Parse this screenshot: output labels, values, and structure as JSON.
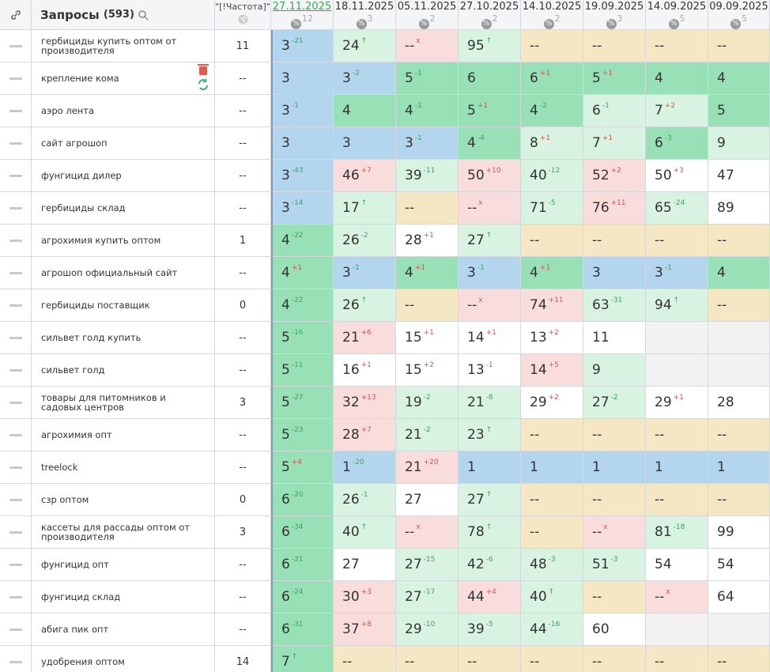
{
  "header": {
    "query_title": "Запросы",
    "query_count": "(593)",
    "frequency_title": "\"[!Частота]\"",
    "dates": [
      {
        "date": "27.11.2025",
        "count": 12
      },
      {
        "date": "18.11.2025",
        "count": 3
      },
      {
        "date": "05.11.2025",
        "count": 2
      },
      {
        "date": "27.10.2025",
        "count": 2
      },
      {
        "date": "14.10.2025",
        "count": 2
      },
      {
        "date": "19.09.2025",
        "count": 3
      },
      {
        "date": "14.09.2025",
        "count": 5
      },
      {
        "date": "09.09.2025",
        "count": 5
      }
    ]
  },
  "palette": {
    "blue": "#b3d5ee",
    "green": "#98e0b5",
    "mint": "#d8f3e2",
    "white": "#ffffff",
    "pink": "#f9dcdc",
    "beige": "#f5e7c3",
    "gray": "#f2f2f2",
    "improve": "#3aa55d",
    "worsen": "#d9534f"
  },
  "table": {
    "rows": [
      {
        "query": "гербициды купить оптом от производителя",
        "frequency": 11,
        "cells": [
          [
            3,
            "-21",
            "blue"
          ],
          [
            24,
            "↑",
            "mint"
          ],
          [
            "--",
            "x",
            "pink"
          ],
          [
            95,
            "↑",
            "mint"
          ],
          [
            "--",
            null,
            "beige"
          ],
          [
            "--",
            null,
            "beige"
          ],
          [
            "--",
            null,
            "beige"
          ],
          [
            "--",
            null,
            "beige"
          ]
        ]
      },
      {
        "query": "крепление кома",
        "frequency": "--",
        "cells": [
          [
            3,
            null,
            "blue"
          ],
          [
            3,
            "-2",
            "blue"
          ],
          [
            5,
            "-1",
            "green"
          ],
          [
            6,
            null,
            "green"
          ],
          [
            6,
            "+1",
            "green"
          ],
          [
            5,
            "+1",
            "green"
          ],
          [
            4,
            null,
            "green"
          ],
          [
            4,
            null,
            "green"
          ]
        ]
      },
      {
        "query": "аэро лента",
        "frequency": "--",
        "cells": [
          [
            3,
            "-1",
            "blue"
          ],
          [
            4,
            null,
            "green"
          ],
          [
            4,
            "-1",
            "green"
          ],
          [
            5,
            "+1",
            "green"
          ],
          [
            4,
            "-2",
            "green"
          ],
          [
            6,
            "-1",
            "mint"
          ],
          [
            7,
            "+2",
            "mint"
          ],
          [
            5,
            null,
            "green"
          ]
        ]
      },
      {
        "query": "сайт агрошоп",
        "frequency": "--",
        "cells": [
          [
            3,
            null,
            "blue"
          ],
          [
            3,
            null,
            "blue"
          ],
          [
            3,
            "-1",
            "blue"
          ],
          [
            4,
            "-4",
            "green"
          ],
          [
            8,
            "+1",
            "mint"
          ],
          [
            7,
            "+1",
            "mint"
          ],
          [
            6,
            "-3",
            "green"
          ],
          [
            9,
            null,
            "mint"
          ]
        ]
      },
      {
        "query": "фунгицид дилер",
        "frequency": "--",
        "cells": [
          [
            3,
            "-43",
            "blue"
          ],
          [
            46,
            "+7",
            "pink"
          ],
          [
            39,
            "-11",
            "mint"
          ],
          [
            50,
            "+10",
            "pink"
          ],
          [
            40,
            "-12",
            "mint"
          ],
          [
            52,
            "+2",
            "pink"
          ],
          [
            50,
            "+3",
            "white"
          ],
          [
            47,
            null,
            "white"
          ]
        ]
      },
      {
        "query": "гербициды склад",
        "frequency": "--",
        "cells": [
          [
            3,
            "-14",
            "blue"
          ],
          [
            17,
            "↑",
            "mint"
          ],
          [
            "--",
            null,
            "beige"
          ],
          [
            "--",
            "x",
            "pink"
          ],
          [
            71,
            "-5",
            "mint"
          ],
          [
            76,
            "+11",
            "pink"
          ],
          [
            65,
            "-24",
            "mint"
          ],
          [
            89,
            null,
            "white"
          ]
        ]
      },
      {
        "query": "агрохимия купить оптом",
        "frequency": 1,
        "cells": [
          [
            4,
            "-22",
            "green"
          ],
          [
            26,
            "-2",
            "mint"
          ],
          [
            28,
            "+1",
            "white"
          ],
          [
            27,
            "↑",
            "mint"
          ],
          [
            "--",
            null,
            "beige"
          ],
          [
            "--",
            null,
            "beige"
          ],
          [
            "--",
            null,
            "beige"
          ],
          [
            "--",
            null,
            "beige"
          ]
        ]
      },
      {
        "query": "агрошоп официальный сайт",
        "frequency": "--",
        "cells": [
          [
            4,
            "+1",
            "green"
          ],
          [
            3,
            "-1",
            "blue"
          ],
          [
            4,
            "+1",
            "green"
          ],
          [
            3,
            "-1",
            "blue"
          ],
          [
            4,
            "+1",
            "green"
          ],
          [
            3,
            null,
            "blue"
          ],
          [
            3,
            "-1",
            "blue"
          ],
          [
            4,
            null,
            "green"
          ]
        ]
      },
      {
        "query": "гербициды поставщик",
        "frequency": 0,
        "cells": [
          [
            4,
            "-22",
            "green"
          ],
          [
            26,
            "↑",
            "mint"
          ],
          [
            "--",
            null,
            "beige"
          ],
          [
            "--",
            "x",
            "pink"
          ],
          [
            74,
            "+11",
            "pink"
          ],
          [
            63,
            "-31",
            "mint"
          ],
          [
            94,
            "↑",
            "mint"
          ],
          [
            "--",
            null,
            "beige"
          ]
        ]
      },
      {
        "query": "сильвет голд купить",
        "frequency": "--",
        "cells": [
          [
            5,
            "-16",
            "green"
          ],
          [
            21,
            "+6",
            "pink"
          ],
          [
            15,
            "+1",
            "white"
          ],
          [
            14,
            "+1",
            "white"
          ],
          [
            13,
            "+2",
            "white"
          ],
          [
            11,
            null,
            "white"
          ],
          [
            null,
            null,
            "gray"
          ],
          [
            null,
            null,
            "gray"
          ]
        ]
      },
      {
        "query": "сильвет голд",
        "frequency": "--",
        "cells": [
          [
            5,
            "-11",
            "green"
          ],
          [
            16,
            "+1",
            "white"
          ],
          [
            15,
            "+2",
            "white"
          ],
          [
            13,
            "-1",
            "white"
          ],
          [
            14,
            "+5",
            "pink"
          ],
          [
            9,
            null,
            "mint"
          ],
          [
            null,
            null,
            "gray"
          ],
          [
            null,
            null,
            "gray"
          ]
        ]
      },
      {
        "query": "товары для питомников и садовых центров",
        "frequency": 3,
        "cells": [
          [
            5,
            "-27",
            "green"
          ],
          [
            32,
            "+13",
            "pink"
          ],
          [
            19,
            "-2",
            "mint"
          ],
          [
            21,
            "-8",
            "mint"
          ],
          [
            29,
            "+2",
            "white"
          ],
          [
            27,
            "-2",
            "mint"
          ],
          [
            29,
            "+1",
            "white"
          ],
          [
            28,
            null,
            "white"
          ]
        ]
      },
      {
        "query": "агрохимия опт",
        "frequency": "--",
        "cells": [
          [
            5,
            "-23",
            "green"
          ],
          [
            28,
            "+7",
            "pink"
          ],
          [
            21,
            "-2",
            "mint"
          ],
          [
            23,
            "↑",
            "mint"
          ],
          [
            "--",
            null,
            "beige"
          ],
          [
            "--",
            null,
            "beige"
          ],
          [
            "--",
            null,
            "beige"
          ],
          [
            "--",
            null,
            "beige"
          ]
        ]
      },
      {
        "query": "treelock",
        "frequency": "--",
        "cells": [
          [
            5,
            "+4",
            "green"
          ],
          [
            1,
            "-20",
            "blue"
          ],
          [
            21,
            "+20",
            "pink"
          ],
          [
            1,
            null,
            "blue"
          ],
          [
            1,
            null,
            "blue"
          ],
          [
            1,
            null,
            "blue"
          ],
          [
            1,
            null,
            "blue"
          ],
          [
            1,
            null,
            "blue"
          ]
        ]
      },
      {
        "query": "сзр оптом",
        "frequency": 0,
        "cells": [
          [
            6,
            "-20",
            "green"
          ],
          [
            26,
            "-1",
            "mint"
          ],
          [
            27,
            null,
            "white"
          ],
          [
            27,
            "↑",
            "mint"
          ],
          [
            "--",
            null,
            "beige"
          ],
          [
            "--",
            null,
            "beige"
          ],
          [
            "--",
            null,
            "beige"
          ],
          [
            "--",
            null,
            "beige"
          ]
        ]
      },
      {
        "query": "кассеты для рассады оптом от производителя",
        "frequency": 3,
        "cells": [
          [
            6,
            "-34",
            "green"
          ],
          [
            40,
            "↑",
            "mint"
          ],
          [
            "--",
            "x",
            "pink"
          ],
          [
            78,
            "↑",
            "mint"
          ],
          [
            "--",
            null,
            "beige"
          ],
          [
            "--",
            "x",
            "pink"
          ],
          [
            81,
            "-18",
            "mint"
          ],
          [
            99,
            null,
            "white"
          ]
        ]
      },
      {
        "query": "фунгицид опт",
        "frequency": "--",
        "cells": [
          [
            6,
            "-21",
            "green"
          ],
          [
            27,
            null,
            "white"
          ],
          [
            27,
            "-15",
            "mint"
          ],
          [
            42,
            "-6",
            "mint"
          ],
          [
            48,
            "-3",
            "mint"
          ],
          [
            51,
            "-3",
            "mint"
          ],
          [
            54,
            null,
            "white"
          ],
          [
            54,
            null,
            "white"
          ]
        ]
      },
      {
        "query": "фунгицид склад",
        "frequency": "--",
        "cells": [
          [
            6,
            "-24",
            "green"
          ],
          [
            30,
            "+3",
            "pink"
          ],
          [
            27,
            "-17",
            "mint"
          ],
          [
            44,
            "+4",
            "pink"
          ],
          [
            40,
            "↑",
            "mint"
          ],
          [
            "--",
            null,
            "beige"
          ],
          [
            "--",
            "x",
            "pink"
          ],
          [
            64,
            null,
            "white"
          ]
        ]
      },
      {
        "query": "абига пик опт",
        "frequency": "--",
        "cells": [
          [
            6,
            "-31",
            "green"
          ],
          [
            37,
            "+8",
            "pink"
          ],
          [
            29,
            "-10",
            "mint"
          ],
          [
            39,
            "-5",
            "mint"
          ],
          [
            44,
            "-16",
            "mint"
          ],
          [
            60,
            null,
            "white"
          ],
          [
            null,
            null,
            "gray"
          ],
          [
            null,
            null,
            "gray"
          ]
        ]
      },
      {
        "query": "удобрения оптом",
        "frequency": 14,
        "cells": [
          [
            7,
            "↑",
            "green"
          ],
          [
            "--",
            null,
            "beige"
          ],
          [
            "--",
            null,
            "beige"
          ],
          [
            "--",
            null,
            "beige"
          ],
          [
            "--",
            null,
            "beige"
          ],
          [
            "--",
            null,
            "beige"
          ],
          [
            "--",
            null,
            "beige"
          ],
          [
            "--",
            null,
            "beige"
          ]
        ]
      }
    ]
  }
}
